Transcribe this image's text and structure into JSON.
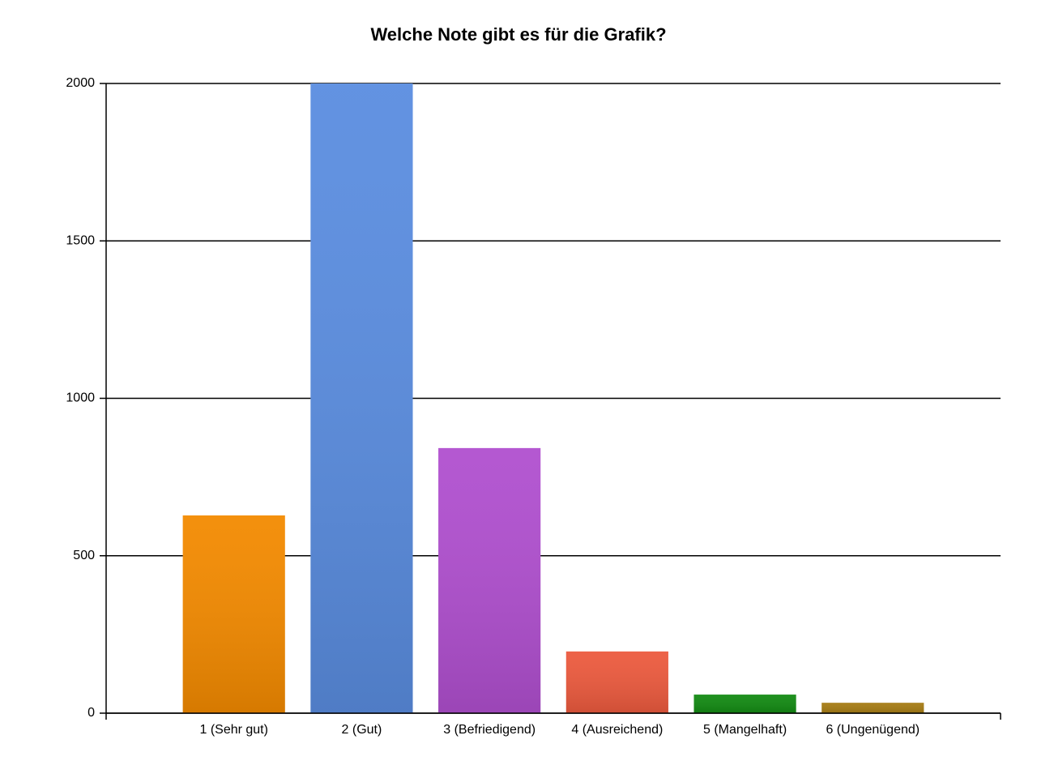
{
  "chart_data": {
    "type": "bar",
    "title": "Welche Note gibt es für die Grafik?",
    "categories": [
      "1 (Sehr gut)",
      "2 (Gut)",
      "3 (Befriedigend)",
      "4 (Ausreichend)",
      "5 (Mangelhaft)",
      "6 (Ungenügend)"
    ],
    "values": [
      628,
      2000,
      842,
      196,
      59,
      33
    ],
    "colors": [
      "#f38a00",
      "#5a8de0",
      "#b04fcf",
      "#ec5a3e",
      "#138a13",
      "#a67c14"
    ],
    "ylim": [
      0,
      2000
    ],
    "yticks": [
      0,
      500,
      1000,
      1500,
      2000
    ],
    "grid": true
  }
}
